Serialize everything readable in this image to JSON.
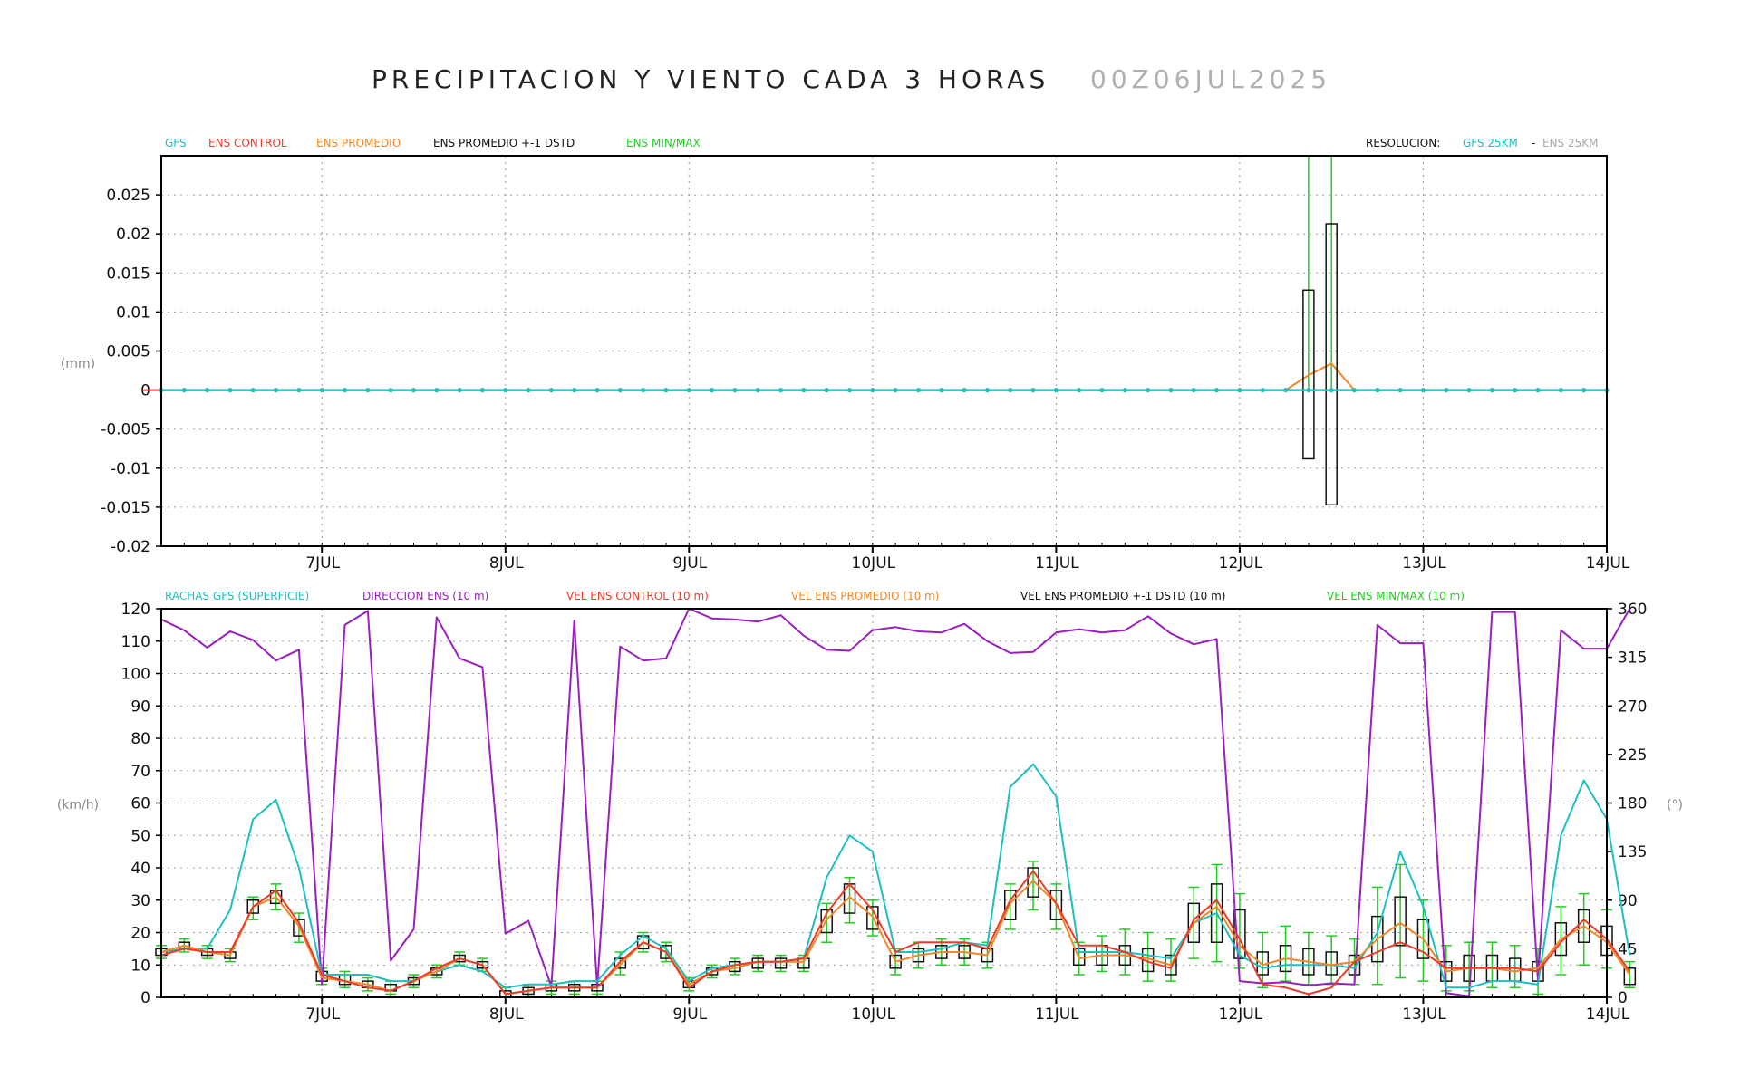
{
  "title": "PRECIPITACION Y VIENTO CADA 3 HORAS",
  "run": "00Z06JUL2025",
  "colors": {
    "gfs": "#1fbfbf",
    "ens_control": "#ee3b2b",
    "ens_mean": "#f08828",
    "ens_std": "#111111",
    "ens_minmax": "#22cc22",
    "direction": "#9a1fbf",
    "grid": "#9a9a9a",
    "faint": "#a8a8a8"
  },
  "precip_legend": {
    "gfs": "GFS",
    "control": "ENS CONTROL",
    "mean": "ENS PROMEDIO",
    "std": "ENS PROMEDIO +-1 DSTD",
    "minmax": "ENS MIN/MAX",
    "res_label": "RESOLUCION:",
    "res_gfs": "GFS 25KM",
    "res_sep": "-",
    "res_ens": "ENS 25KM"
  },
  "wind_legend": {
    "gusts": "RACHAS GFS (SUPERFICIE)",
    "direction": "DIRECCION ENS (10 m)",
    "control": "VEL ENS CONTROL (10 m)",
    "mean": "VEL ENS PROMEDIO (10 m)",
    "std": "VEL ENS PROMEDIO +-1 DSTD (10 m)",
    "minmax": "VEL ENS MIN/MAX (10 m)"
  },
  "chart_data": [
    {
      "type": "line",
      "title": "PRECIPITACION Y VIENTO CADA 3 HORAS",
      "ylabel": "(mm)",
      "ylim": [
        -0.02,
        0.03
      ],
      "yticks": [
        "0.025",
        "0.02",
        "0.015",
        "0.01",
        "0.005",
        "0",
        "-0.005",
        "-0.01",
        "-0.015",
        "-0.02"
      ],
      "ytick_values": [
        0.025,
        0.02,
        0.015,
        0.01,
        0.005,
        0,
        -0.005,
        -0.01,
        -0.015,
        -0.02
      ],
      "xticks": [
        "7JUL",
        "8JUL",
        "9JUL",
        "10JUL",
        "11JUL",
        "12JUL",
        "13JUL",
        "14JUL"
      ],
      "xtick_days": [
        1,
        2,
        3,
        4,
        5,
        6,
        7,
        8
      ],
      "xlim_days": [
        0.125,
        8
      ],
      "grid": true,
      "series": [
        {
          "name": "GFS",
          "x_days": [
            0.125,
            8
          ],
          "values": [
            0,
            0
          ],
          "dots_every_days": 0.125
        },
        {
          "name": "ENS PROMEDIO",
          "x_days": [
            0.0,
            6.25,
            6.375,
            6.5,
            6.625,
            8.0
          ],
          "values": [
            0,
            0,
            0.0019,
            0.0034,
            0,
            0
          ]
        },
        {
          "name": "ENS CONTROL",
          "x_days": [
            0.0,
            0.125
          ],
          "values": [
            0,
            0
          ]
        }
      ],
      "std_boxes": [
        {
          "x_days": 6.375,
          "low": -0.0088,
          "high": 0.0128
        },
        {
          "x_days": 6.5,
          "low": -0.0147,
          "high": 0.0213
        }
      ],
      "minmax_bars": [
        {
          "x_days": 6.375,
          "low": 0,
          "high": 0.03
        },
        {
          "x_days": 6.5,
          "low": 0,
          "high": 0.03
        }
      ]
    },
    {
      "type": "line",
      "ylabel": "(km/h)",
      "ylabel_right": "(°)",
      "ylim": [
        0,
        120
      ],
      "ylim_right": [
        0,
        360
      ],
      "yticks": [
        "0",
        "10",
        "20",
        "30",
        "40",
        "50",
        "60",
        "70",
        "80",
        "90",
        "100",
        "110",
        "120"
      ],
      "ytick_values": [
        0,
        10,
        20,
        30,
        40,
        50,
        60,
        70,
        80,
        90,
        100,
        110,
        120
      ],
      "yticks_right": [
        "0",
        "45",
        "90",
        "135",
        "180",
        "225",
        "270",
        "315",
        "360"
      ],
      "ytick_values_right": [
        0,
        45,
        90,
        135,
        180,
        225,
        270,
        315,
        360
      ],
      "xticks": [
        "7JUL",
        "8JUL",
        "9JUL",
        "10JUL",
        "11JUL",
        "12JUL",
        "13JUL",
        "14JUL"
      ],
      "xtick_days": [
        1,
        2,
        3,
        4,
        5,
        6,
        7,
        8
      ],
      "xlim_days": [
        0.125,
        8
      ],
      "x_step_days": 0.125,
      "grid": true,
      "series": [
        {
          "name": "RACHAS GFS (SUPERFICIE)",
          "axis": "left",
          "values": [
            14,
            15,
            15,
            27,
            55,
            61,
            40,
            7,
            7,
            7,
            5,
            5,
            8,
            10,
            8,
            3,
            4,
            4,
            5,
            5,
            13,
            19,
            15,
            5,
            9,
            10,
            11,
            11,
            12,
            37,
            50,
            45,
            14,
            14,
            15,
            17,
            16,
            65,
            72,
            62,
            14,
            14,
            14,
            13,
            12,
            23,
            26,
            13,
            9,
            10,
            10,
            10,
            9,
            20,
            45,
            28,
            3,
            3,
            5,
            5,
            4,
            50,
            67,
            55,
            13
          ]
        },
        {
          "name": "DIRECCION ENS (10 m)",
          "axis": "right",
          "values": [
            350,
            340,
            324,
            339,
            331,
            312,
            322,
            12,
            345,
            358,
            34,
            63,
            352,
            314,
            306,
            59,
            71,
            10,
            349,
            10,
            325,
            312,
            314,
            360,
            351,
            350,
            348,
            354,
            335,
            322,
            321,
            340,
            343,
            339,
            338,
            346,
            330,
            319,
            320,
            338,
            341,
            338,
            340,
            353,
            337,
            327,
            332,
            15,
            13,
            14,
            11,
            13,
            12,
            345,
            328,
            328,
            4,
            1,
            357,
            357,
            16,
            340,
            323,
            323,
            360
          ]
        },
        {
          "name": "VEL ENS CONTROL (10 m)",
          "axis": "left",
          "values": [
            13,
            15,
            14,
            14,
            28,
            33,
            23,
            7,
            5,
            3,
            2,
            5,
            9,
            12,
            10,
            1,
            2,
            3,
            3,
            3,
            11,
            17,
            14,
            3,
            8,
            10,
            11,
            11,
            12,
            26,
            35,
            27,
            14,
            17,
            17,
            17,
            15,
            30,
            39,
            29,
            16,
            16,
            14,
            11,
            9,
            24,
            30,
            18,
            4,
            3,
            1,
            3,
            11,
            14,
            17,
            14,
            9,
            9,
            9,
            9,
            8,
            17,
            24,
            18,
            8
          ]
        },
        {
          "name": "VEL ENS PROMEDIO (10 m)",
          "axis": "left",
          "values": [
            14,
            16,
            14,
            13,
            28,
            31,
            22,
            6,
            5,
            4,
            2,
            5,
            8,
            12,
            10,
            1,
            2,
            3,
            3,
            3,
            10,
            17,
            14,
            4,
            8,
            9,
            11,
            11,
            11,
            24,
            31,
            25,
            11,
            13,
            14,
            14,
            13,
            29,
            36,
            29,
            12,
            13,
            13,
            12,
            10,
            23,
            28,
            16,
            10,
            12,
            11,
            10,
            11,
            18,
            23,
            18,
            8,
            9,
            9,
            8,
            9,
            18,
            22,
            17,
            7
          ]
        }
      ],
      "std_boxes": {
        "low": [
          13,
          15,
          13,
          12,
          26,
          29,
          19,
          5,
          4,
          3,
          2,
          4,
          7,
          11,
          9,
          0,
          1,
          2,
          2,
          2,
          9,
          15,
          12,
          3,
          7,
          8,
          9,
          9,
          9,
          20,
          26,
          21,
          9,
          11,
          12,
          12,
          11,
          24,
          31,
          24,
          10,
          10,
          10,
          8,
          7,
          17,
          17,
          12,
          7,
          8,
          7,
          7,
          7,
          11,
          16,
          12,
          5,
          5,
          5,
          5,
          5,
          13,
          17,
          13,
          4
        ],
        "high": [
          15,
          17,
          15,
          14,
          30,
          33,
          24,
          8,
          7,
          5,
          4,
          6,
          9,
          13,
          11,
          2,
          3,
          4,
          4,
          4,
          12,
          19,
          16,
          5,
          9,
          11,
          12,
          12,
          12,
          27,
          35,
          28,
          13,
          15,
          16,
          16,
          15,
          33,
          40,
          33,
          15,
          16,
          16,
          15,
          13,
          29,
          35,
          27,
          14,
          16,
          15,
          14,
          13,
          25,
          31,
          24,
          11,
          13,
          13,
          12,
          11,
          23,
          27,
          22,
          9
        ]
      },
      "minmax_bars": {
        "low": [
          12,
          14,
          12,
          11,
          24,
          27,
          17,
          4,
          3,
          2,
          1,
          3,
          6,
          10,
          8,
          0,
          0,
          1,
          1,
          1,
          7,
          14,
          11,
          2,
          6,
          7,
          8,
          8,
          8,
          17,
          23,
          19,
          7,
          9,
          10,
          10,
          9,
          21,
          27,
          21,
          7,
          8,
          7,
          5,
          5,
          12,
          11,
          9,
          3,
          5,
          4,
          4,
          4,
          4,
          6,
          5,
          2,
          2,
          3,
          3,
          1,
          7,
          10,
          9,
          3
        ],
        "high": [
          16,
          18,
          16,
          15,
          31,
          35,
          26,
          9,
          8,
          6,
          5,
          7,
          10,
          14,
          12,
          3,
          4,
          5,
          5,
          5,
          14,
          20,
          17,
          6,
          10,
          12,
          13,
          13,
          13,
          29,
          37,
          30,
          15,
          17,
          18,
          18,
          17,
          35,
          42,
          35,
          17,
          19,
          21,
          20,
          18,
          34,
          41,
          32,
          20,
          22,
          20,
          19,
          18,
          34,
          41,
          30,
          16,
          17,
          17,
          16,
          15,
          28,
          32,
          27,
          11
        ]
      }
    }
  ]
}
